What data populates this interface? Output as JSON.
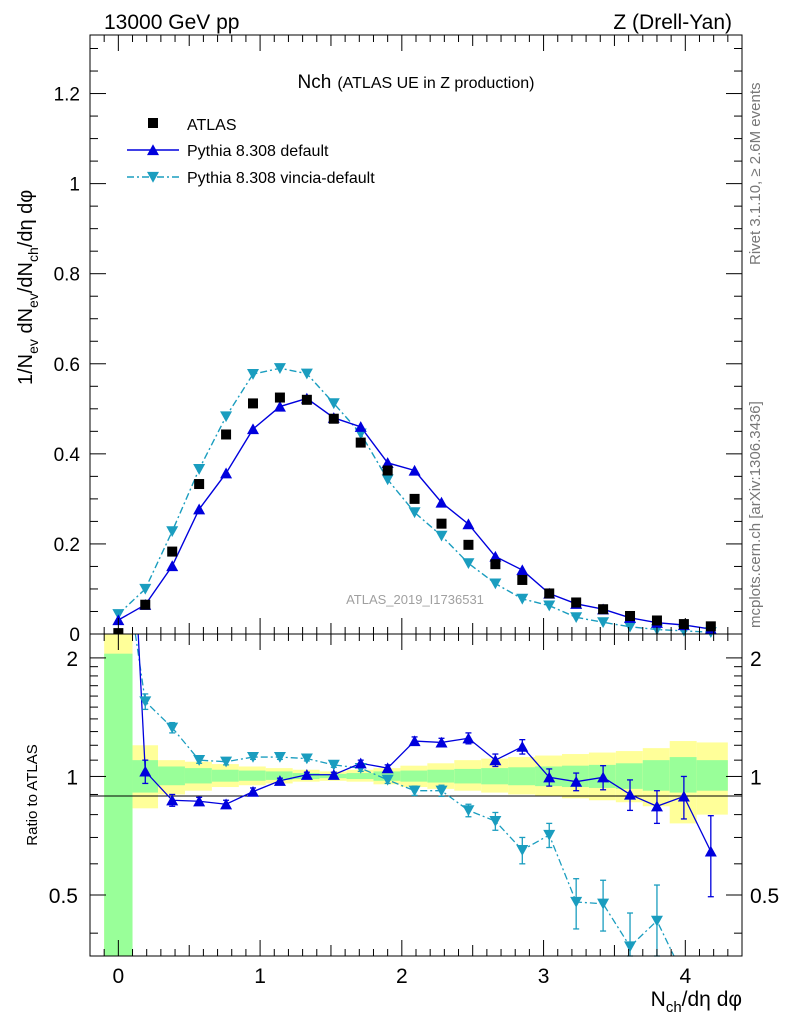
{
  "header": {
    "left": "13000 GeV pp",
    "right": "Z (Drell-Yan)"
  },
  "side_labels": {
    "top": "Rivet 3.1.10, ≥ 2.6M events",
    "bottom": "mcplots.cern.ch [arXiv:1306.3436]"
  },
  "chart_data": [
    {
      "type": "scatter",
      "title_main": "Nch",
      "title_sub": "(ATLAS UE in Z production)",
      "analysis_id": "ATLAS_2019_I1736531",
      "ylabel": "1/N_ev dN_ev/dN_ch/dη dφ",
      "xlim": [
        -0.2,
        4.4
      ],
      "ylim": [
        0,
        1.33
      ],
      "yticks": [
        0,
        0.2,
        0.4,
        0.6,
        0.8,
        1,
        1.2
      ],
      "ytick_labels": [
        "0",
        "0.2",
        "0.4",
        "0.6",
        "0.8",
        "1",
        "1.2"
      ],
      "legend_position": "top-left",
      "colors": {
        "atlas": "#000000",
        "default": "#0000dd",
        "vincia": "#1a9dbf"
      },
      "series": [
        {
          "name": "ATLAS",
          "marker": "square",
          "x": [
            0.0,
            0.19,
            0.38,
            0.57,
            0.76,
            0.95,
            1.14,
            1.33,
            1.52,
            1.71,
            1.9,
            2.09,
            2.28,
            2.47,
            2.66,
            2.85,
            3.04,
            3.23,
            3.42,
            3.61,
            3.8,
            3.99,
            4.18
          ],
          "values": [
            0.002,
            0.065,
            0.183,
            0.333,
            0.443,
            0.512,
            0.525,
            0.52,
            0.478,
            0.425,
            0.363,
            0.3,
            0.245,
            0.198,
            0.155,
            0.12,
            0.09,
            0.07,
            0.055,
            0.04,
            0.03,
            0.022,
            0.017
          ]
        },
        {
          "name": "Pythia 8.308 default",
          "marker": "triangle-up",
          "line": "solid",
          "x": [
            0.0,
            0.19,
            0.38,
            0.57,
            0.76,
            0.95,
            1.14,
            1.33,
            1.52,
            1.71,
            1.9,
            2.09,
            2.28,
            2.47,
            2.66,
            2.85,
            3.04,
            3.23,
            3.42,
            3.61,
            3.8,
            3.99,
            4.18
          ],
          "values": [
            0.031,
            0.065,
            0.151,
            0.277,
            0.357,
            0.455,
            0.505,
            0.523,
            0.48,
            0.46,
            0.38,
            0.363,
            0.292,
            0.244,
            0.172,
            0.142,
            0.09,
            0.067,
            0.055,
            0.036,
            0.025,
            0.02,
            0.011
          ]
        },
        {
          "name": "Pythia 8.308 vincia-default",
          "marker": "triangle-down",
          "line": "dash-dot",
          "x": [
            0.0,
            0.19,
            0.38,
            0.57,
            0.76,
            0.95,
            1.14,
            1.33,
            1.52,
            1.71,
            1.9,
            2.09,
            2.28,
            2.47,
            2.66,
            2.85,
            3.04,
            3.23,
            3.42,
            3.61,
            3.8,
            3.99,
            4.18
          ],
          "values": [
            0.044,
            0.1,
            0.228,
            0.366,
            0.483,
            0.577,
            0.59,
            0.578,
            0.512,
            0.445,
            0.343,
            0.27,
            0.218,
            0.157,
            0.112,
            0.078,
            0.063,
            0.037,
            0.026,
            0.016,
            0.01,
            0.007,
            0.004
          ]
        }
      ]
    },
    {
      "type": "scatter",
      "ylabel": "Ratio to ATLAS",
      "xlabel": "N_ch/dη dφ",
      "ylim": [
        0.35,
        2.3
      ],
      "log_y": true,
      "yticks": [
        0.5,
        1,
        2
      ],
      "ytick_labels": [
        "0.5",
        "1",
        "2"
      ],
      "xticks": [
        0,
        1,
        2,
        3,
        4
      ],
      "xtick_labels": [
        "0",
        "1",
        "2",
        "3",
        "4"
      ],
      "reference_line": 1,
      "band_colors": {
        "inner": "#99ff99",
        "outer": "#ffff99"
      },
      "bands": {
        "x_edges": [
          -0.1,
          0.1,
          0.28,
          0.47,
          0.66,
          0.85,
          1.04,
          1.23,
          1.42,
          1.61,
          1.8,
          1.99,
          2.18,
          2.37,
          2.56,
          2.75,
          2.94,
          3.13,
          3.32,
          3.51,
          3.7,
          3.89,
          4.08,
          4.3
        ],
        "inner_low": [
          0.35,
          0.91,
          0.95,
          0.96,
          0.97,
          0.975,
          0.98,
          0.985,
          0.99,
          0.985,
          0.975,
          0.97,
          0.965,
          0.96,
          0.955,
          0.95,
          0.945,
          0.94,
          0.935,
          0.93,
          0.92,
          0.91,
          0.92
        ],
        "inner_high": [
          2.05,
          1.1,
          1.06,
          1.05,
          1.04,
          1.035,
          1.03,
          1.02,
          1.015,
          1.02,
          1.03,
          1.035,
          1.04,
          1.045,
          1.05,
          1.055,
          1.06,
          1.065,
          1.07,
          1.08,
          1.1,
          1.12,
          1.1
        ],
        "outer_low": [
          0.35,
          0.83,
          0.9,
          0.92,
          0.94,
          0.95,
          0.96,
          0.97,
          0.975,
          0.97,
          0.955,
          0.94,
          0.93,
          0.92,
          0.91,
          0.9,
          0.89,
          0.88,
          0.87,
          0.86,
          0.84,
          0.76,
          0.8
        ],
        "outer_high": [
          2.3,
          1.2,
          1.1,
          1.09,
          1.075,
          1.06,
          1.05,
          1.04,
          1.03,
          1.04,
          1.05,
          1.065,
          1.08,
          1.1,
          1.11,
          1.12,
          1.13,
          1.14,
          1.15,
          1.16,
          1.18,
          1.23,
          1.22
        ]
      },
      "series": [
        {
          "name": "Pythia 8.308 default",
          "x": [
            0.19,
            0.38,
            0.57,
            0.76,
            0.95,
            1.14,
            1.33,
            1.52,
            1.71,
            1.9,
            2.09,
            2.28,
            2.47,
            2.66,
            2.85,
            3.04,
            3.23,
            3.42,
            3.61,
            3.8,
            3.99,
            4.18
          ],
          "values": [
            1.03,
            0.87,
            0.865,
            0.85,
            0.915,
            0.975,
            1.01,
            1.01,
            1.08,
            1.05,
            1.23,
            1.22,
            1.25,
            1.1,
            1.19,
            0.995,
            0.97,
            0.995,
            0.9,
            0.84,
            0.89,
            0.645
          ],
          "err": [
            0.07,
            0.03,
            0.02,
            0.02,
            0.02,
            0.015,
            0.015,
            0.015,
            0.02,
            0.02,
            0.03,
            0.03,
            0.04,
            0.04,
            0.05,
            0.05,
            0.05,
            0.07,
            0.08,
            0.08,
            0.11,
            0.15
          ]
        },
        {
          "name": "Pythia 8.308 vincia-default",
          "x": [
            0.19,
            0.38,
            0.57,
            0.76,
            0.95,
            1.14,
            1.33,
            1.52,
            1.71,
            1.9,
            2.09,
            2.28,
            2.47,
            2.66,
            2.85,
            3.04,
            3.23,
            3.42,
            3.61,
            3.8
          ],
          "values": [
            1.55,
            1.33,
            1.1,
            1.09,
            1.12,
            1.12,
            1.11,
            1.07,
            1.05,
            0.98,
            0.92,
            0.92,
            0.82,
            0.77,
            0.65,
            0.71,
            0.48,
            0.475,
            0.37,
            0.43
          ],
          "err": [
            0.07,
            0.04,
            0.02,
            0.02,
            0.015,
            0.015,
            0.015,
            0.015,
            0.02,
            0.02,
            0.025,
            0.03,
            0.03,
            0.04,
            0.05,
            0.05,
            0.07,
            0.07,
            0.08,
            0.1
          ]
        }
      ]
    }
  ]
}
